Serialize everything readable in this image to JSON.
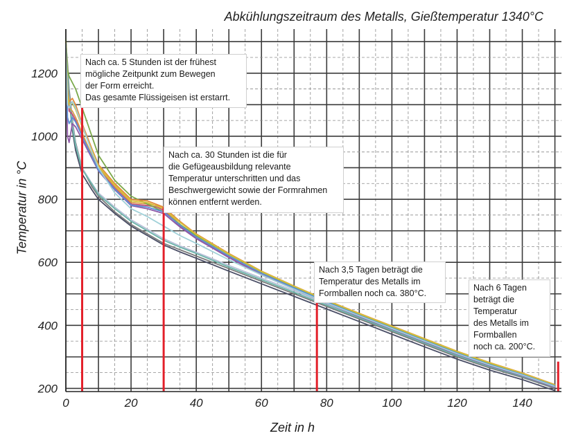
{
  "chart_data": {
    "type": "line",
    "title": "Abkühlungszeitraum des Metalls, Gießtemperatur 1340°C",
    "xlabel": "Zeit in h",
    "ylabel": "Temperatur in °C",
    "xlim": [
      0,
      152
    ],
    "ylim": [
      190,
      1340
    ],
    "xticks": [
      0,
      20,
      40,
      60,
      80,
      100,
      120,
      140
    ],
    "yticks": [
      200,
      400,
      600,
      800,
      1000,
      1200
    ],
    "grid": true,
    "legend": "none",
    "markers": [
      {
        "x": 5,
        "y_top": 1110,
        "color": "#e3202a"
      },
      {
        "x": 30,
        "y_top": 775,
        "color": "#e3202a"
      },
      {
        "x": 77,
        "y_top": 480,
        "color": "#e3202a"
      },
      {
        "x": 151,
        "y_top": 285,
        "color": "#e3202a"
      }
    ],
    "series": [
      {
        "color": "#7a7a7a",
        "x": [
          0,
          0.5,
          1,
          2,
          3,
          5,
          8,
          10,
          15,
          20,
          25,
          30,
          35,
          40,
          50,
          60,
          70,
          80,
          90,
          100,
          110,
          120,
          130,
          140,
          150
        ],
        "y": [
          1300,
          1230,
          1150,
          1050,
          980,
          900,
          840,
          810,
          760,
          720,
          690,
          660,
          640,
          620,
          580,
          540,
          500,
          460,
          420,
          380,
          340,
          300,
          265,
          235,
          200
        ]
      },
      {
        "color": "#4a4e66",
        "x": [
          0,
          0.5,
          1,
          2,
          3,
          5,
          8,
          10,
          15,
          20,
          25,
          30,
          35,
          40,
          50,
          60,
          70,
          80,
          90,
          100,
          110,
          120,
          130,
          140,
          150
        ],
        "y": [
          1280,
          1200,
          1120,
          1020,
          955,
          880,
          830,
          800,
          755,
          715,
          685,
          655,
          633,
          613,
          572,
          532,
          492,
          452,
          412,
          372,
          332,
          293,
          258,
          228,
          193
        ]
      },
      {
        "color": "#b8c0d8",
        "x": [
          0,
          0.5,
          1,
          2,
          3,
          5,
          8,
          10,
          15,
          20,
          25,
          30,
          35,
          40,
          50,
          60,
          70,
          80,
          90,
          100,
          110,
          120,
          130,
          140,
          150
        ],
        "y": [
          1290,
          1210,
          1130,
          1040,
          975,
          900,
          850,
          820,
          775,
          735,
          705,
          675,
          652,
          632,
          590,
          550,
          510,
          468,
          427,
          387,
          347,
          307,
          271,
          240,
          205
        ]
      },
      {
        "color": "#6bb5a8",
        "x": [
          0,
          0.5,
          1,
          2,
          3,
          5,
          8,
          10,
          15,
          20,
          25,
          30,
          35,
          40,
          50,
          60,
          70,
          80,
          90,
          100,
          110,
          120,
          130,
          140,
          150
        ],
        "y": [
          1290,
          1210,
          1120,
          1030,
          970,
          895,
          848,
          815,
          770,
          730,
          700,
          670,
          648,
          628,
          585,
          545,
          505,
          464,
          424,
          384,
          344,
          304,
          269,
          238,
          203
        ]
      },
      {
        "color": "#d9a04a",
        "x": [
          0,
          0.5,
          1,
          2,
          3,
          5,
          8,
          10,
          15,
          20,
          25,
          28,
          30,
          35,
          40,
          50,
          60,
          70,
          80,
          90,
          100,
          110,
          120,
          130,
          140,
          150
        ],
        "y": [
          1300,
          1160,
          1090,
          1080,
          1060,
          1010,
          940,
          900,
          840,
          790,
          785,
          780,
          770,
          720,
          680,
          620,
          565,
          520,
          475,
          433,
          393,
          353,
          313,
          277,
          244,
          207
        ]
      },
      {
        "color": "#c04f7a",
        "x": [
          0,
          0.5,
          1,
          2,
          3,
          5,
          8,
          10,
          15,
          20,
          25,
          28,
          30,
          35,
          40,
          50,
          60,
          70,
          80,
          90,
          100,
          110,
          120,
          130,
          140,
          150
        ],
        "y": [
          1300,
          1150,
          1080,
          1070,
          1050,
          1000,
          935,
          895,
          835,
          785,
          780,
          775,
          765,
          715,
          676,
          616,
          562,
          517,
          472,
          430,
          390,
          350,
          310,
          274,
          242,
          205
        ]
      },
      {
        "color": "#7aa84a",
        "x": [
          0,
          0.5,
          1,
          2,
          3,
          5,
          8,
          10,
          15,
          20,
          25,
          30,
          35,
          40,
          50,
          60,
          70,
          80,
          90,
          100,
          110,
          120,
          130,
          140,
          150
        ],
        "y": [
          1310,
          1210,
          1190,
          1170,
          1150,
          1090,
          1000,
          940,
          860,
          810,
          785,
          760,
          720,
          685,
          625,
          570,
          523,
          478,
          436,
          396,
          356,
          316,
          280,
          247,
          210
        ]
      },
      {
        "color": "#e28a3a",
        "x": [
          0,
          0.5,
          1,
          2,
          3,
          5,
          8,
          10,
          15,
          20,
          25,
          30,
          35,
          40,
          50,
          60,
          70,
          80,
          90,
          100,
          110,
          120,
          130,
          140,
          150
        ],
        "y": [
          1300,
          1140,
          1110,
          1120,
          1100,
          1040,
          960,
          910,
          850,
          800,
          795,
          775,
          730,
          690,
          628,
          572,
          525,
          480,
          438,
          398,
          358,
          318,
          282,
          249,
          212
        ]
      },
      {
        "color": "#8f5aa8",
        "x": [
          0,
          0.5,
          1,
          2,
          3,
          5,
          8,
          10,
          15,
          20,
          25,
          30,
          35,
          40,
          50,
          60,
          70,
          80,
          90,
          100,
          110,
          120,
          130,
          140,
          150
        ],
        "y": [
          1280,
          1000,
          980,
          1040,
          1030,
          990,
          930,
          890,
          830,
          780,
          770,
          755,
          712,
          675,
          615,
          560,
          515,
          470,
          428,
          388,
          348,
          308,
          272,
          240,
          204
        ]
      },
      {
        "color": "#d4c23a",
        "x": [
          0,
          0.5,
          1,
          2,
          3,
          5,
          8,
          10,
          15,
          20,
          25,
          30,
          35,
          40,
          50,
          60,
          70,
          80,
          90,
          100,
          110,
          120,
          130,
          140,
          150
        ],
        "y": [
          1300,
          1130,
          1100,
          1105,
          1085,
          1030,
          955,
          905,
          845,
          795,
          790,
          770,
          727,
          688,
          626,
          571,
          524,
          479,
          437,
          397,
          357,
          317,
          281,
          248,
          211
        ]
      },
      {
        "color": "#5b8fd4",
        "x": [
          0,
          0.5,
          1,
          2,
          3,
          5,
          8,
          10,
          15,
          20,
          25,
          30,
          35,
          40,
          50,
          60,
          70,
          80,
          90,
          100,
          110,
          120,
          130,
          140,
          150
        ],
        "y": [
          1290,
          1060,
          1040,
          1060,
          1045,
          1000,
          935,
          892,
          832,
          782,
          775,
          760,
          718,
          680,
          620,
          565,
          519,
          474,
          432,
          392,
          352,
          312,
          276,
          244,
          208
        ]
      },
      {
        "color": "#a0d0d8",
        "x": [
          0,
          0.5,
          1,
          2,
          3,
          5,
          8,
          10,
          15,
          20,
          25,
          30,
          35,
          40,
          50,
          60,
          70,
          80,
          90,
          100,
          110,
          120,
          130,
          140,
          150
        ],
        "y": [
          1295,
          1100,
          1090,
          1110,
          1090,
          1035,
          950,
          900,
          820,
          770,
          745,
          715,
          685,
          660,
          608,
          560,
          515,
          471,
          430,
          390,
          350,
          310,
          274,
          242,
          206
        ]
      }
    ]
  },
  "annotations": [
    {
      "lines": [
        "Nach ca. 5 Stunden ist der frühest",
        "mögliche Zeitpunkt zum Bewegen",
        "der Form erreicht.",
        "Das gesamte Flüssigeisen ist erstarrt."
      ]
    },
    {
      "lines": [
        "Nach ca. 30 Stunden ist die für",
        "die Gefügeausbildung relevante",
        "Temperatur unterschritten und das",
        "Beschwergewicht sowie der Formrahmen",
        "können entfernt werden."
      ]
    },
    {
      "lines": [
        "Nach 3,5 Tagen beträgt die",
        "Temperatur des Metalls im",
        "Formballen noch ca. 380°C."
      ]
    },
    {
      "lines": [
        "Nach 6 Tagen",
        "beträgt die",
        "Temperatur",
        "des Metalls im",
        "Formballen",
        "noch ca. 200°C."
      ]
    }
  ]
}
